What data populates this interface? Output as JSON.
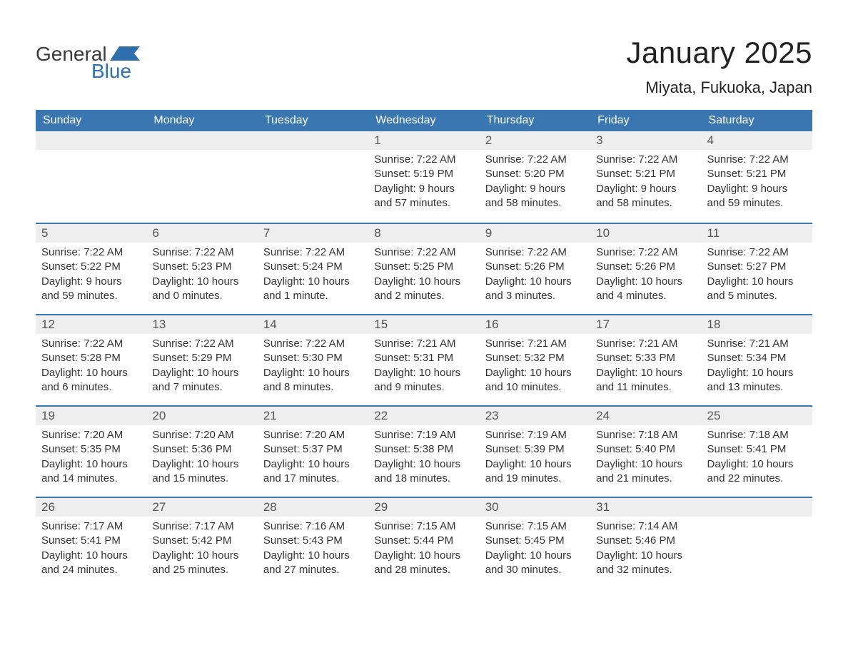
{
  "logo": {
    "text1": "General",
    "text2": "Blue",
    "flag_color": "#2f6fad",
    "text1_color": "#3a3a3a"
  },
  "title": "January 2025",
  "location": "Miyata, Fukuoka, Japan",
  "colors": {
    "header_bg": "#3a76b0",
    "header_text": "#ffffff",
    "daynum_bg": "#eeeeee",
    "border_top": "#3a76b0",
    "body_text": "#333333"
  },
  "daynames": [
    "Sunday",
    "Monday",
    "Tuesday",
    "Wednesday",
    "Thursday",
    "Friday",
    "Saturday"
  ],
  "weeks": [
    [
      {
        "blank": true
      },
      {
        "blank": true
      },
      {
        "blank": true
      },
      {
        "n": "1",
        "sunrise": "Sunrise: 7:22 AM",
        "sunset": "Sunset: 5:19 PM",
        "day1": "Daylight: 9 hours",
        "day2": "and 57 minutes."
      },
      {
        "n": "2",
        "sunrise": "Sunrise: 7:22 AM",
        "sunset": "Sunset: 5:20 PM",
        "day1": "Daylight: 9 hours",
        "day2": "and 58 minutes."
      },
      {
        "n": "3",
        "sunrise": "Sunrise: 7:22 AM",
        "sunset": "Sunset: 5:21 PM",
        "day1": "Daylight: 9 hours",
        "day2": "and 58 minutes."
      },
      {
        "n": "4",
        "sunrise": "Sunrise: 7:22 AM",
        "sunset": "Sunset: 5:21 PM",
        "day1": "Daylight: 9 hours",
        "day2": "and 59 minutes."
      }
    ],
    [
      {
        "n": "5",
        "sunrise": "Sunrise: 7:22 AM",
        "sunset": "Sunset: 5:22 PM",
        "day1": "Daylight: 9 hours",
        "day2": "and 59 minutes."
      },
      {
        "n": "6",
        "sunrise": "Sunrise: 7:22 AM",
        "sunset": "Sunset: 5:23 PM",
        "day1": "Daylight: 10 hours",
        "day2": "and 0 minutes."
      },
      {
        "n": "7",
        "sunrise": "Sunrise: 7:22 AM",
        "sunset": "Sunset: 5:24 PM",
        "day1": "Daylight: 10 hours",
        "day2": "and 1 minute."
      },
      {
        "n": "8",
        "sunrise": "Sunrise: 7:22 AM",
        "sunset": "Sunset: 5:25 PM",
        "day1": "Daylight: 10 hours",
        "day2": "and 2 minutes."
      },
      {
        "n": "9",
        "sunrise": "Sunrise: 7:22 AM",
        "sunset": "Sunset: 5:26 PM",
        "day1": "Daylight: 10 hours",
        "day2": "and 3 minutes."
      },
      {
        "n": "10",
        "sunrise": "Sunrise: 7:22 AM",
        "sunset": "Sunset: 5:26 PM",
        "day1": "Daylight: 10 hours",
        "day2": "and 4 minutes."
      },
      {
        "n": "11",
        "sunrise": "Sunrise: 7:22 AM",
        "sunset": "Sunset: 5:27 PM",
        "day1": "Daylight: 10 hours",
        "day2": "and 5 minutes."
      }
    ],
    [
      {
        "n": "12",
        "sunrise": "Sunrise: 7:22 AM",
        "sunset": "Sunset: 5:28 PM",
        "day1": "Daylight: 10 hours",
        "day2": "and 6 minutes."
      },
      {
        "n": "13",
        "sunrise": "Sunrise: 7:22 AM",
        "sunset": "Sunset: 5:29 PM",
        "day1": "Daylight: 10 hours",
        "day2": "and 7 minutes."
      },
      {
        "n": "14",
        "sunrise": "Sunrise: 7:22 AM",
        "sunset": "Sunset: 5:30 PM",
        "day1": "Daylight: 10 hours",
        "day2": "and 8 minutes."
      },
      {
        "n": "15",
        "sunrise": "Sunrise: 7:21 AM",
        "sunset": "Sunset: 5:31 PM",
        "day1": "Daylight: 10 hours",
        "day2": "and 9 minutes."
      },
      {
        "n": "16",
        "sunrise": "Sunrise: 7:21 AM",
        "sunset": "Sunset: 5:32 PM",
        "day1": "Daylight: 10 hours",
        "day2": "and 10 minutes."
      },
      {
        "n": "17",
        "sunrise": "Sunrise: 7:21 AM",
        "sunset": "Sunset: 5:33 PM",
        "day1": "Daylight: 10 hours",
        "day2": "and 11 minutes."
      },
      {
        "n": "18",
        "sunrise": "Sunrise: 7:21 AM",
        "sunset": "Sunset: 5:34 PM",
        "day1": "Daylight: 10 hours",
        "day2": "and 13 minutes."
      }
    ],
    [
      {
        "n": "19",
        "sunrise": "Sunrise: 7:20 AM",
        "sunset": "Sunset: 5:35 PM",
        "day1": "Daylight: 10 hours",
        "day2": "and 14 minutes."
      },
      {
        "n": "20",
        "sunrise": "Sunrise: 7:20 AM",
        "sunset": "Sunset: 5:36 PM",
        "day1": "Daylight: 10 hours",
        "day2": "and 15 minutes."
      },
      {
        "n": "21",
        "sunrise": "Sunrise: 7:20 AM",
        "sunset": "Sunset: 5:37 PM",
        "day1": "Daylight: 10 hours",
        "day2": "and 17 minutes."
      },
      {
        "n": "22",
        "sunrise": "Sunrise: 7:19 AM",
        "sunset": "Sunset: 5:38 PM",
        "day1": "Daylight: 10 hours",
        "day2": "and 18 minutes."
      },
      {
        "n": "23",
        "sunrise": "Sunrise: 7:19 AM",
        "sunset": "Sunset: 5:39 PM",
        "day1": "Daylight: 10 hours",
        "day2": "and 19 minutes."
      },
      {
        "n": "24",
        "sunrise": "Sunrise: 7:18 AM",
        "sunset": "Sunset: 5:40 PM",
        "day1": "Daylight: 10 hours",
        "day2": "and 21 minutes."
      },
      {
        "n": "25",
        "sunrise": "Sunrise: 7:18 AM",
        "sunset": "Sunset: 5:41 PM",
        "day1": "Daylight: 10 hours",
        "day2": "and 22 minutes."
      }
    ],
    [
      {
        "n": "26",
        "sunrise": "Sunrise: 7:17 AM",
        "sunset": "Sunset: 5:41 PM",
        "day1": "Daylight: 10 hours",
        "day2": "and 24 minutes."
      },
      {
        "n": "27",
        "sunrise": "Sunrise: 7:17 AM",
        "sunset": "Sunset: 5:42 PM",
        "day1": "Daylight: 10 hours",
        "day2": "and 25 minutes."
      },
      {
        "n": "28",
        "sunrise": "Sunrise: 7:16 AM",
        "sunset": "Sunset: 5:43 PM",
        "day1": "Daylight: 10 hours",
        "day2": "and 27 minutes."
      },
      {
        "n": "29",
        "sunrise": "Sunrise: 7:15 AM",
        "sunset": "Sunset: 5:44 PM",
        "day1": "Daylight: 10 hours",
        "day2": "and 28 minutes."
      },
      {
        "n": "30",
        "sunrise": "Sunrise: 7:15 AM",
        "sunset": "Sunset: 5:45 PM",
        "day1": "Daylight: 10 hours",
        "day2": "and 30 minutes."
      },
      {
        "n": "31",
        "sunrise": "Sunrise: 7:14 AM",
        "sunset": "Sunset: 5:46 PM",
        "day1": "Daylight: 10 hours",
        "day2": "and 32 minutes."
      },
      {
        "blank": true
      }
    ]
  ]
}
